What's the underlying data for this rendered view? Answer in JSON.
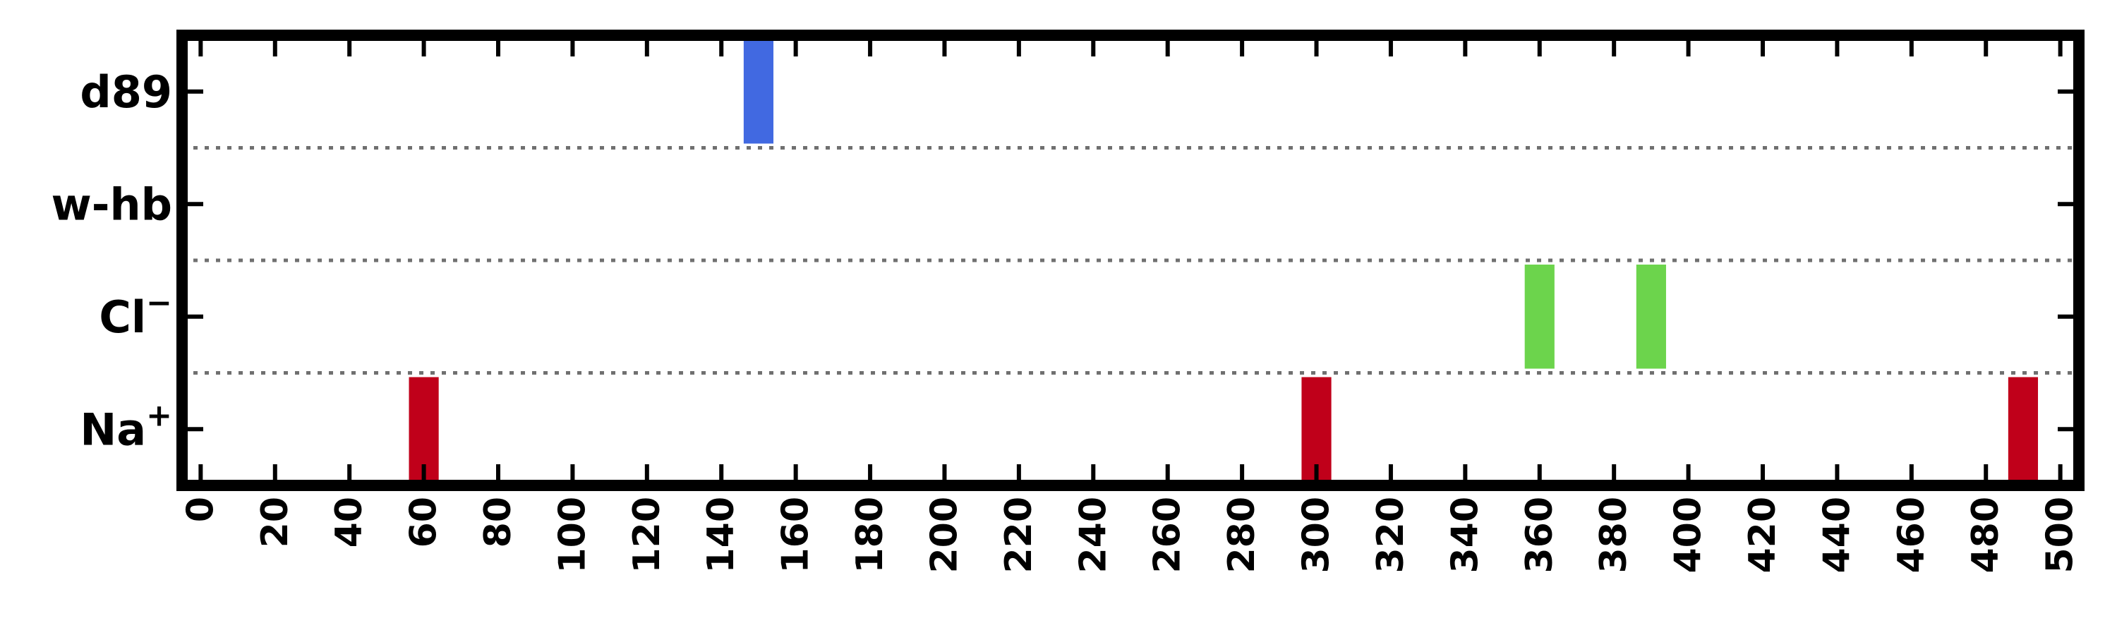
{
  "chart_data": {
    "type": "bar",
    "title": "",
    "xlabel": "",
    "ylabel": "",
    "xlim": [
      -5,
      505
    ],
    "x_ticks": [
      "0",
      "20",
      "40",
      "60",
      "80",
      "100",
      "120",
      "140",
      "160",
      "180",
      "200",
      "220",
      "240",
      "260",
      "280",
      "300",
      "320",
      "340",
      "360",
      "380",
      "400",
      "420",
      "440",
      "460",
      "480",
      "500"
    ],
    "rows": [
      {
        "label": "d89",
        "label_main": "d89",
        "label_sup": "",
        "color": "#4169E1",
        "events": [
          150
        ]
      },
      {
        "label": "w-hb",
        "label_main": "w-hb",
        "label_sup": "",
        "color": "#4169E1",
        "events": []
      },
      {
        "label": "Cl−",
        "label_main": "Cl",
        "label_sup": "−",
        "color": "#6CD44C",
        "events": [
          360,
          390
        ]
      },
      {
        "label": "Na+",
        "label_main": "Na",
        "label_sup": "+",
        "color": "#C0001A",
        "events": [
          60,
          300,
          490
        ]
      }
    ],
    "event_width": 8,
    "row_separators": "dotted",
    "grid": false,
    "legend": "none"
  }
}
